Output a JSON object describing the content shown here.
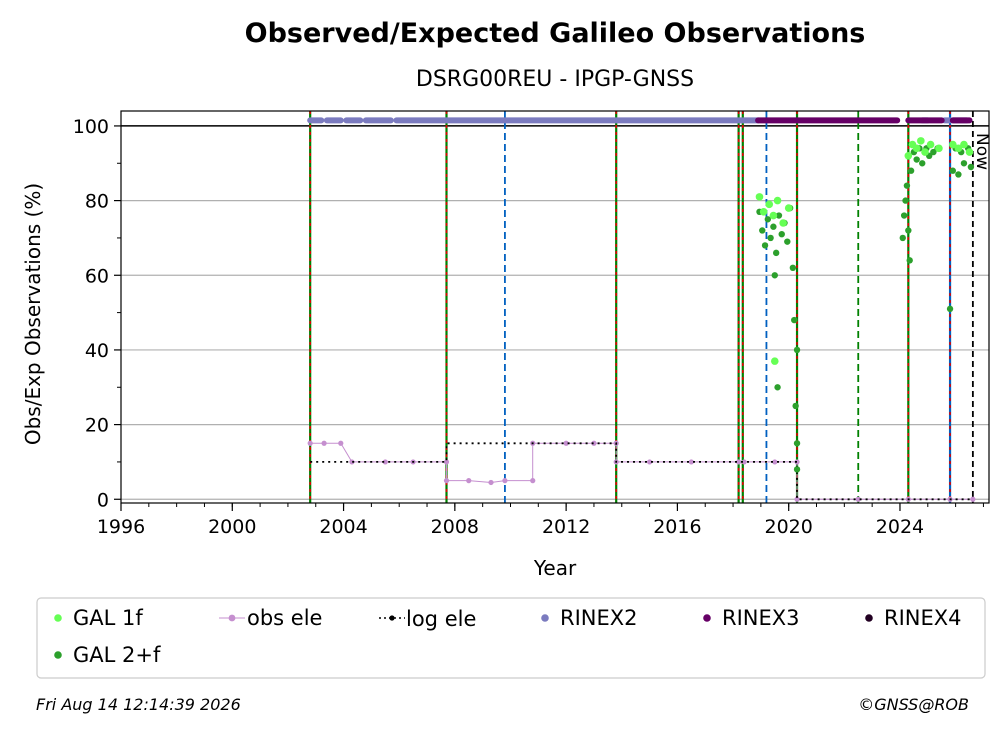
{
  "chart_data": {
    "type": "scatter",
    "title": "Observed/Expected Galileo Observations",
    "subtitle": "DSRG00REU - IPGP-GNSS",
    "xlabel": "Year",
    "ylabel": "Obs/Exp Observations (%)",
    "xlim": [
      1996,
      2027.2
    ],
    "ylim": [
      -1,
      104
    ],
    "x_ticks": [
      1996,
      2000,
      2004,
      2008,
      2012,
      2016,
      2020,
      2024
    ],
    "x_tick_labels": [
      "1996",
      "2000",
      "2004",
      "2008",
      "2012",
      "2016",
      "2020",
      "2024"
    ],
    "y_ticks": [
      0,
      20,
      40,
      60,
      80,
      100
    ],
    "y_tick_labels": [
      "0",
      "20",
      "40",
      "60",
      "80",
      "100"
    ],
    "grid": "horizontal",
    "now_label": "Now",
    "now_x": 2026.62,
    "reference_line_y": 100,
    "colors": {
      "gal_1f": "#66ff55",
      "gal_2f": "#2ca02c",
      "obs_ele": "#c58fcf",
      "log_ele": "#000000",
      "rinex2": "#7b7bbf",
      "rinex3": "#660066",
      "rinex4": "#220022",
      "event_green": "#008000",
      "event_red": "#e00000",
      "event_blue": "#0060c0"
    },
    "vertical_events": [
      {
        "x": 2002.8,
        "style": "green-red"
      },
      {
        "x": 2007.7,
        "style": "green-red"
      },
      {
        "x": 2009.8,
        "style": "blue"
      },
      {
        "x": 2013.8,
        "style": "green-red"
      },
      {
        "x": 2018.2,
        "style": "green-red"
      },
      {
        "x": 2018.35,
        "style": "green-red"
      },
      {
        "x": 2019.2,
        "style": "blue"
      },
      {
        "x": 2020.3,
        "style": "green-red"
      },
      {
        "x": 2022.5,
        "style": "green"
      },
      {
        "x": 2024.3,
        "style": "green-red"
      },
      {
        "x": 2025.8,
        "style": "blue-red"
      }
    ],
    "series": [
      {
        "name": "GAL 1f",
        "kind": "points",
        "points": [
          [
            2018.95,
            81
          ],
          [
            2019.1,
            77
          ],
          [
            2019.3,
            79
          ],
          [
            2019.45,
            76
          ],
          [
            2019.6,
            80
          ],
          [
            2019.8,
            74
          ],
          [
            2020.0,
            78
          ],
          [
            2019.5,
            37
          ],
          [
            2024.3,
            92
          ],
          [
            2024.45,
            95
          ],
          [
            2024.6,
            94
          ],
          [
            2024.75,
            96
          ],
          [
            2024.9,
            93
          ],
          [
            2025.1,
            95
          ],
          [
            2025.4,
            94
          ],
          [
            2025.9,
            95
          ],
          [
            2026.1,
            94
          ],
          [
            2026.3,
            95
          ],
          [
            2026.5,
            93
          ]
        ]
      },
      {
        "name": "GAL 2+f",
        "kind": "points",
        "points": [
          [
            2018.95,
            77
          ],
          [
            2019.05,
            72
          ],
          [
            2019.15,
            68
          ],
          [
            2019.25,
            75
          ],
          [
            2019.35,
            70
          ],
          [
            2019.45,
            73
          ],
          [
            2019.55,
            66
          ],
          [
            2019.65,
            76
          ],
          [
            2019.75,
            71
          ],
          [
            2019.85,
            74
          ],
          [
            2019.95,
            69
          ],
          [
            2020.05,
            78
          ],
          [
            2020.15,
            62
          ],
          [
            2019.5,
            60
          ],
          [
            2019.6,
            30
          ],
          [
            2020.2,
            48
          ],
          [
            2020.3,
            40
          ],
          [
            2020.25,
            25
          ],
          [
            2020.3,
            15
          ],
          [
            2020.3,
            8
          ],
          [
            2024.1,
            70
          ],
          [
            2024.15,
            76
          ],
          [
            2024.2,
            80
          ],
          [
            2024.25,
            84
          ],
          [
            2024.3,
            72
          ],
          [
            2024.35,
            64
          ],
          [
            2024.4,
            88
          ],
          [
            2024.5,
            93
          ],
          [
            2024.6,
            91
          ],
          [
            2024.7,
            94
          ],
          [
            2024.8,
            90
          ],
          [
            2024.95,
            94
          ],
          [
            2025.05,
            92
          ],
          [
            2025.2,
            93
          ],
          [
            2025.35,
            94
          ],
          [
            2025.8,
            51
          ],
          [
            2025.9,
            88
          ],
          [
            2026.0,
            94
          ],
          [
            2026.1,
            87
          ],
          [
            2026.2,
            93
          ],
          [
            2026.3,
            90
          ],
          [
            2026.45,
            94
          ],
          [
            2026.55,
            89
          ]
        ]
      },
      {
        "name": "obs ele",
        "kind": "line",
        "points": [
          [
            2002.8,
            15
          ],
          [
            2003.3,
            15
          ],
          [
            2003.9,
            15
          ],
          [
            2004.3,
            10
          ],
          [
            2005.5,
            10
          ],
          [
            2006.5,
            10
          ],
          [
            2007.7,
            10
          ],
          [
            2007.7,
            5
          ],
          [
            2008.5,
            5
          ],
          [
            2009.3,
            4.5
          ],
          [
            2009.8,
            5
          ],
          [
            2010.8,
            5
          ],
          [
            2010.8,
            15
          ],
          [
            2012.0,
            15
          ],
          [
            2013.0,
            15
          ],
          [
            2013.8,
            15
          ],
          [
            2013.8,
            10
          ],
          [
            2015.0,
            10
          ],
          [
            2016.5,
            10
          ],
          [
            2018.2,
            10
          ],
          [
            2018.4,
            10
          ],
          [
            2019.5,
            10
          ],
          [
            2020.3,
            10
          ],
          [
            2020.3,
            0
          ],
          [
            2022.5,
            0
          ],
          [
            2024.3,
            0
          ],
          [
            2025.8,
            0
          ],
          [
            2026.62,
            0
          ]
        ]
      },
      {
        "name": "log ele",
        "kind": "step",
        "points": [
          [
            2002.8,
            10
          ],
          [
            2007.7,
            10
          ],
          [
            2007.7,
            15
          ],
          [
            2013.8,
            15
          ],
          [
            2013.8,
            10
          ],
          [
            2020.3,
            10
          ],
          [
            2020.3,
            0
          ],
          [
            2026.62,
            0
          ]
        ]
      },
      {
        "name": "RINEX2",
        "kind": "band",
        "y": 101.5,
        "ranges": [
          [
            2002.8,
            2003.2
          ],
          [
            2003.4,
            2003.9
          ],
          [
            2004.1,
            2004.6
          ],
          [
            2004.8,
            2005.7
          ],
          [
            2005.9,
            2018.9
          ],
          [
            2024.8,
            2025.0
          ],
          [
            2025.6,
            2025.8
          ],
          [
            2025.9,
            2026.4
          ]
        ]
      },
      {
        "name": "RINEX3",
        "kind": "band",
        "y": 101.5,
        "ranges": [
          [
            2018.9,
            2023.9
          ],
          [
            2024.3,
            2025.5
          ],
          [
            2025.9,
            2026.5
          ]
        ]
      },
      {
        "name": "RINEX4",
        "kind": "band",
        "y": 101.5,
        "ranges": []
      }
    ]
  },
  "footer": {
    "timestamp": "Fri Aug 14 12:14:39 2026",
    "credit": "©GNSS@ROB"
  }
}
